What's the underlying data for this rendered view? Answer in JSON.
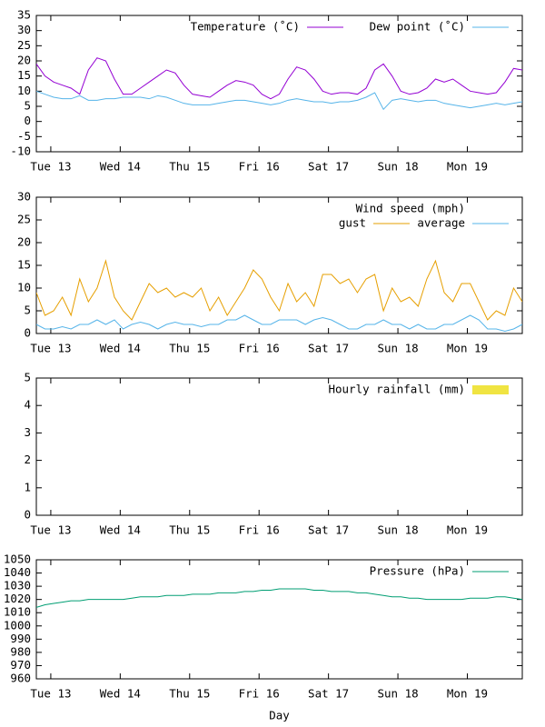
{
  "chart_data": [
    {
      "type": "line",
      "x": [
        -5,
        -2,
        1,
        4,
        7,
        10,
        13,
        16,
        19,
        22,
        25,
        28,
        31,
        34,
        37,
        40,
        43,
        46,
        49,
        52,
        55,
        58,
        61,
        64,
        67,
        70,
        73,
        76,
        79,
        82,
        85,
        88,
        91,
        94,
        97,
        100,
        103,
        106,
        109,
        112,
        115,
        118,
        121,
        124,
        127,
        130,
        133,
        136,
        139,
        142,
        145,
        148,
        151,
        154,
        157,
        160,
        163
      ],
      "xlim": [
        -5,
        163
      ],
      "xticks": [
        {
          "value": 0,
          "label": "Tue 13"
        },
        {
          "value": 24,
          "label": "Wed 14"
        },
        {
          "value": 48,
          "label": "Thu 15"
        },
        {
          "value": 72,
          "label": "Fri 16"
        },
        {
          "value": 96,
          "label": "Sat 17"
        },
        {
          "value": 120,
          "label": "Sun 18"
        },
        {
          "value": 144,
          "label": "Mon 19"
        }
      ],
      "ylim": [
        -10,
        35
      ],
      "yticks": [
        -10,
        -5,
        0,
        5,
        10,
        15,
        20,
        25,
        30,
        35
      ],
      "series": [
        {
          "name": "Temperature (˚C)",
          "color": "#9400d3",
          "values": [
            19,
            15,
            13,
            12,
            11,
            9,
            17,
            21,
            20,
            14,
            9,
            9,
            11,
            13,
            15,
            17,
            16,
            12,
            9,
            8.5,
            8,
            10,
            12,
            13.5,
            13,
            12,
            9,
            7.5,
            9,
            14,
            18,
            17,
            14,
            10,
            9,
            9.5,
            9.5,
            9,
            11,
            17,
            19,
            15,
            10,
            9,
            9.5,
            11,
            14,
            13,
            14,
            12,
            10,
            9.5,
            9,
            9.5,
            13,
            17.5,
            17
          ]
        },
        {
          "name": "Dew point (˚C)",
          "color": "#56b4e9",
          "values": [
            10,
            9,
            8,
            7.5,
            7.5,
            8.5,
            7,
            7,
            7.5,
            7.5,
            8,
            8,
            8,
            7.5,
            8.5,
            8,
            7,
            6,
            5.5,
            5.5,
            5.5,
            6,
            6.5,
            7,
            7,
            6.5,
            6,
            5.5,
            6,
            7,
            7.5,
            7,
            6.5,
            6.5,
            6,
            6.5,
            6.5,
            7,
            8,
            9.5,
            4,
            7,
            7.5,
            7,
            6.5,
            7,
            7,
            6,
            5.5,
            5,
            4.5,
            5,
            5.5,
            6,
            5.5,
            6,
            6.5
          ]
        }
      ]
    },
    {
      "type": "line",
      "legend_title": "Wind speed (mph)",
      "x": [
        -5,
        -2,
        1,
        4,
        7,
        10,
        13,
        16,
        19,
        22,
        25,
        28,
        31,
        34,
        37,
        40,
        43,
        46,
        49,
        52,
        55,
        58,
        61,
        64,
        67,
        70,
        73,
        76,
        79,
        82,
        85,
        88,
        91,
        94,
        97,
        100,
        103,
        106,
        109,
        112,
        115,
        118,
        121,
        124,
        127,
        130,
        133,
        136,
        139,
        142,
        145,
        148,
        151,
        154,
        157,
        160,
        163
      ],
      "xlim": [
        -5,
        163
      ],
      "xticks": [
        {
          "value": 0,
          "label": "Tue 13"
        },
        {
          "value": 24,
          "label": "Wed 14"
        },
        {
          "value": 48,
          "label": "Thu 15"
        },
        {
          "value": 72,
          "label": "Fri 16"
        },
        {
          "value": 96,
          "label": "Sat 17"
        },
        {
          "value": 120,
          "label": "Sun 18"
        },
        {
          "value": 144,
          "label": "Mon 19"
        }
      ],
      "ylim": [
        0,
        30
      ],
      "yticks": [
        0,
        5,
        10,
        15,
        20,
        25,
        30
      ],
      "series": [
        {
          "name": "gust",
          "color": "#e69f00",
          "values": [
            9,
            4,
            5,
            8,
            4,
            12,
            7,
            10,
            16,
            8,
            5,
            3,
            7,
            11,
            9,
            10,
            8,
            9,
            8,
            10,
            5,
            8,
            4,
            7,
            10,
            14,
            12,
            8,
            5,
            11,
            7,
            9,
            6,
            13,
            13,
            11,
            12,
            9,
            12,
            13,
            5,
            10,
            7,
            8,
            6,
            12,
            16,
            9,
            7,
            11,
            11,
            7,
            3,
            5,
            4,
            10,
            7
          ]
        },
        {
          "name": "average",
          "color": "#56b4e9",
          "values": [
            2,
            1,
            1,
            1.5,
            1,
            2,
            2,
            3,
            2,
            3,
            1,
            2,
            2.5,
            2,
            1,
            2,
            2.5,
            2,
            2,
            1.5,
            2,
            2,
            3,
            3,
            4,
            3,
            2,
            2,
            3,
            3,
            3,
            2,
            3,
            3.5,
            3,
            2,
            1,
            1,
            2,
            2,
            3,
            2,
            2,
            1,
            2,
            1,
            1,
            2,
            2,
            3,
            4,
            3,
            1,
            1,
            0.5,
            1,
            2
          ]
        }
      ]
    },
    {
      "type": "bar",
      "x": [],
      "xlim": [
        -5,
        163
      ],
      "xticks": [
        {
          "value": 0,
          "label": "Tue 13"
        },
        {
          "value": 24,
          "label": "Wed 14"
        },
        {
          "value": 48,
          "label": "Thu 15"
        },
        {
          "value": 72,
          "label": "Fri 16"
        },
        {
          "value": 96,
          "label": "Sat 17"
        },
        {
          "value": 120,
          "label": "Sun 18"
        },
        {
          "value": 144,
          "label": "Mon 19"
        }
      ],
      "ylim": [
        0,
        5
      ],
      "yticks": [
        0,
        1,
        2,
        3,
        4,
        5
      ],
      "series": [
        {
          "name": "Hourly rainfall (mm)",
          "color": "#f0e442",
          "values": []
        }
      ]
    },
    {
      "type": "line",
      "xlabel": "Day",
      "x": [
        -5,
        -2,
        1,
        4,
        7,
        10,
        13,
        16,
        19,
        22,
        25,
        28,
        31,
        34,
        37,
        40,
        43,
        46,
        49,
        52,
        55,
        58,
        61,
        64,
        67,
        70,
        73,
        76,
        79,
        82,
        85,
        88,
        91,
        94,
        97,
        100,
        103,
        106,
        109,
        112,
        115,
        118,
        121,
        124,
        127,
        130,
        133,
        136,
        139,
        142,
        145,
        148,
        151,
        154,
        157,
        160,
        163
      ],
      "xlim": [
        -5,
        163
      ],
      "xticks": [
        {
          "value": 0,
          "label": "Tue 13"
        },
        {
          "value": 24,
          "label": "Wed 14"
        },
        {
          "value": 48,
          "label": "Thu 15"
        },
        {
          "value": 72,
          "label": "Fri 16"
        },
        {
          "value": 96,
          "label": "Sat 17"
        },
        {
          "value": 120,
          "label": "Sun 18"
        },
        {
          "value": 144,
          "label": "Mon 19"
        }
      ],
      "ylim": [
        960,
        1050
      ],
      "yticks": [
        960,
        970,
        980,
        990,
        1000,
        1010,
        1020,
        1030,
        1040,
        1050
      ],
      "series": [
        {
          "name": "Pressure (hPa)",
          "color": "#009e73",
          "values": [
            1014,
            1016,
            1017,
            1018,
            1019,
            1019,
            1020,
            1020,
            1020,
            1020,
            1020,
            1021,
            1022,
            1022,
            1022,
            1023,
            1023,
            1023,
            1024,
            1024,
            1024,
            1025,
            1025,
            1025,
            1026,
            1026,
            1027,
            1027,
            1028,
            1028,
            1028,
            1028,
            1027,
            1027,
            1026,
            1026,
            1026,
            1025,
            1025,
            1024,
            1023,
            1022,
            1022,
            1021,
            1021,
            1020,
            1020,
            1020,
            1020,
            1020,
            1021,
            1021,
            1021,
            1022,
            1022,
            1021,
            1020
          ]
        }
      ]
    }
  ]
}
